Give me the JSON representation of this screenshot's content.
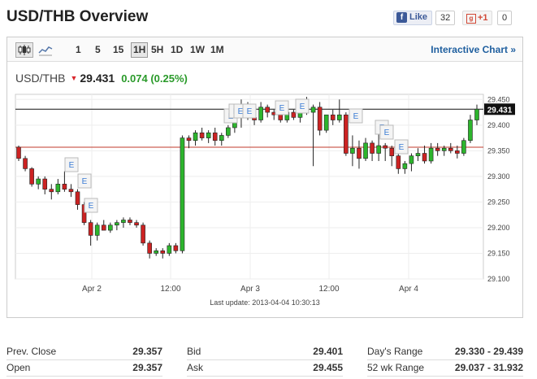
{
  "page_title": "USD/THB Overview",
  "social": {
    "facebook_label": "Like",
    "facebook_count": "32",
    "gplus_label": "+1",
    "gplus_count": "0"
  },
  "toolbar": {
    "timeframes": [
      "1",
      "5",
      "15",
      "1H",
      "5H",
      "1D",
      "1W",
      "1M"
    ],
    "active_timeframe": "1H",
    "interactive_chart_label": "Interactive Chart »"
  },
  "quote": {
    "symbol": "USD/THB",
    "price": "29.431",
    "change": "0.074 (0.25%)"
  },
  "last_update": "Last update: 2013-04-04 10:30:13",
  "chart_data": {
    "type": "candlestick",
    "ylim": [
      29.1,
      29.46
    ],
    "yticks": [
      "29.450",
      "29.400",
      "29.350",
      "29.300",
      "29.250",
      "29.200",
      "29.150",
      "29.100"
    ],
    "xticks": [
      "Apr 2",
      "12:00",
      "Apr 3",
      "12:00",
      "Apr 4"
    ],
    "current_price_label": "29.431",
    "current_price": 29.431,
    "prev_close": 29.357,
    "event_markers": [
      "E",
      "E",
      "E",
      "E",
      "E",
      "E",
      "E",
      "E",
      "E",
      "E",
      "E",
      "E",
      "E"
    ],
    "candles": [
      [
        29.357,
        29.36,
        29.33,
        29.335
      ],
      [
        29.335,
        29.34,
        29.31,
        29.315
      ],
      [
        29.315,
        29.318,
        29.28,
        29.285
      ],
      [
        29.285,
        29.3,
        29.275,
        29.295
      ],
      [
        29.295,
        29.3,
        29.265,
        29.275
      ],
      [
        29.275,
        29.285,
        29.255,
        29.27
      ],
      [
        29.27,
        29.295,
        29.265,
        29.285
      ],
      [
        29.285,
        29.31,
        29.27,
        29.275
      ],
      [
        29.275,
        29.285,
        29.26,
        29.27
      ],
      [
        29.27,
        29.275,
        29.235,
        29.245
      ],
      [
        29.245,
        29.25,
        29.205,
        29.21
      ],
      [
        29.21,
        29.215,
        29.165,
        29.185
      ],
      [
        29.185,
        29.21,
        29.175,
        29.205
      ],
      [
        29.205,
        29.215,
        29.195,
        29.195
      ],
      [
        29.195,
        29.21,
        29.19,
        29.205
      ],
      [
        29.205,
        29.215,
        29.195,
        29.21
      ],
      [
        29.21,
        29.22,
        29.2,
        29.215
      ],
      [
        29.215,
        29.22,
        29.205,
        29.21
      ],
      [
        29.21,
        29.215,
        29.2,
        29.205
      ],
      [
        29.205,
        29.21,
        29.165,
        29.17
      ],
      [
        29.17,
        29.175,
        29.14,
        29.15
      ],
      [
        29.15,
        29.16,
        29.145,
        29.155
      ],
      [
        29.155,
        29.16,
        29.14,
        29.15
      ],
      [
        29.15,
        29.17,
        29.145,
        29.165
      ],
      [
        29.165,
        29.17,
        29.15,
        29.155
      ],
      [
        29.155,
        29.38,
        29.15,
        29.375
      ],
      [
        29.375,
        29.38,
        29.355,
        29.37
      ],
      [
        29.37,
        29.39,
        29.36,
        29.385
      ],
      [
        29.385,
        29.395,
        29.37,
        29.375
      ],
      [
        29.375,
        29.39,
        29.365,
        29.385
      ],
      [
        29.385,
        29.395,
        29.36,
        29.37
      ],
      [
        29.37,
        29.385,
        29.36,
        29.38
      ],
      [
        29.38,
        29.4,
        29.375,
        29.395
      ],
      [
        29.395,
        29.44,
        29.385,
        29.42
      ],
      [
        29.42,
        29.45,
        29.395,
        29.44
      ],
      [
        29.44,
        29.445,
        29.41,
        29.415
      ],
      [
        29.415,
        29.42,
        29.4,
        29.41
      ],
      [
        29.41,
        29.445,
        29.405,
        29.435
      ],
      [
        29.435,
        29.44,
        29.415,
        29.425
      ],
      [
        29.425,
        29.43,
        29.41,
        29.42
      ],
      [
        29.42,
        29.435,
        29.405,
        29.41
      ],
      [
        29.41,
        29.44,
        29.405,
        29.425
      ],
      [
        29.425,
        29.43,
        29.41,
        29.415
      ],
      [
        29.415,
        29.44,
        29.405,
        29.43
      ],
      [
        29.43,
        29.455,
        29.42,
        29.425
      ],
      [
        29.425,
        29.44,
        29.32,
        29.435
      ],
      [
        29.435,
        29.445,
        29.38,
        29.39
      ],
      [
        29.39,
        29.42,
        29.385,
        29.42
      ],
      [
        29.42,
        29.43,
        29.4,
        29.41
      ],
      [
        29.41,
        29.45,
        29.405,
        29.42
      ],
      [
        29.42,
        29.425,
        29.34,
        29.345
      ],
      [
        29.345,
        29.38,
        29.32,
        29.355
      ],
      [
        29.355,
        29.37,
        29.315,
        29.335
      ],
      [
        29.335,
        29.375,
        29.33,
        29.365
      ],
      [
        29.365,
        29.37,
        29.33,
        29.345
      ],
      [
        29.345,
        29.385,
        29.33,
        29.36
      ],
      [
        29.36,
        29.365,
        29.33,
        29.355
      ],
      [
        29.355,
        29.36,
        29.32,
        29.34
      ],
      [
        29.34,
        29.345,
        29.305,
        29.315
      ],
      [
        29.315,
        29.33,
        29.305,
        29.325
      ],
      [
        29.325,
        29.345,
        29.31,
        29.34
      ],
      [
        29.34,
        29.355,
        29.33,
        29.345
      ],
      [
        29.345,
        29.36,
        29.325,
        29.33
      ],
      [
        29.33,
        29.365,
        29.325,
        29.355
      ],
      [
        29.355,
        29.365,
        29.34,
        29.35
      ],
      [
        29.35,
        29.36,
        29.34,
        29.355
      ],
      [
        29.355,
        29.365,
        29.345,
        29.35
      ],
      [
        29.35,
        29.36,
        29.335,
        29.345
      ],
      [
        29.345,
        29.375,
        29.34,
        29.37
      ],
      [
        29.37,
        29.42,
        29.365,
        29.41
      ],
      [
        29.41,
        29.44,
        29.4,
        29.431
      ]
    ]
  },
  "stats": [
    {
      "label": "Prev. Close",
      "value": "29.357"
    },
    {
      "label": "Open",
      "value": "29.357"
    },
    {
      "label": "Bid",
      "value": "29.401"
    },
    {
      "label": "Ask",
      "value": "29.455"
    },
    {
      "label": "Day's Range",
      "value": "29.330 - 29.439"
    },
    {
      "label": "52 wk Range",
      "value": "29.037 - 31.932"
    }
  ],
  "colors": {
    "up": "#2db52d",
    "down": "#cc2222",
    "prev_close_line": "#c0392b",
    "link": "#1f5f9f"
  }
}
